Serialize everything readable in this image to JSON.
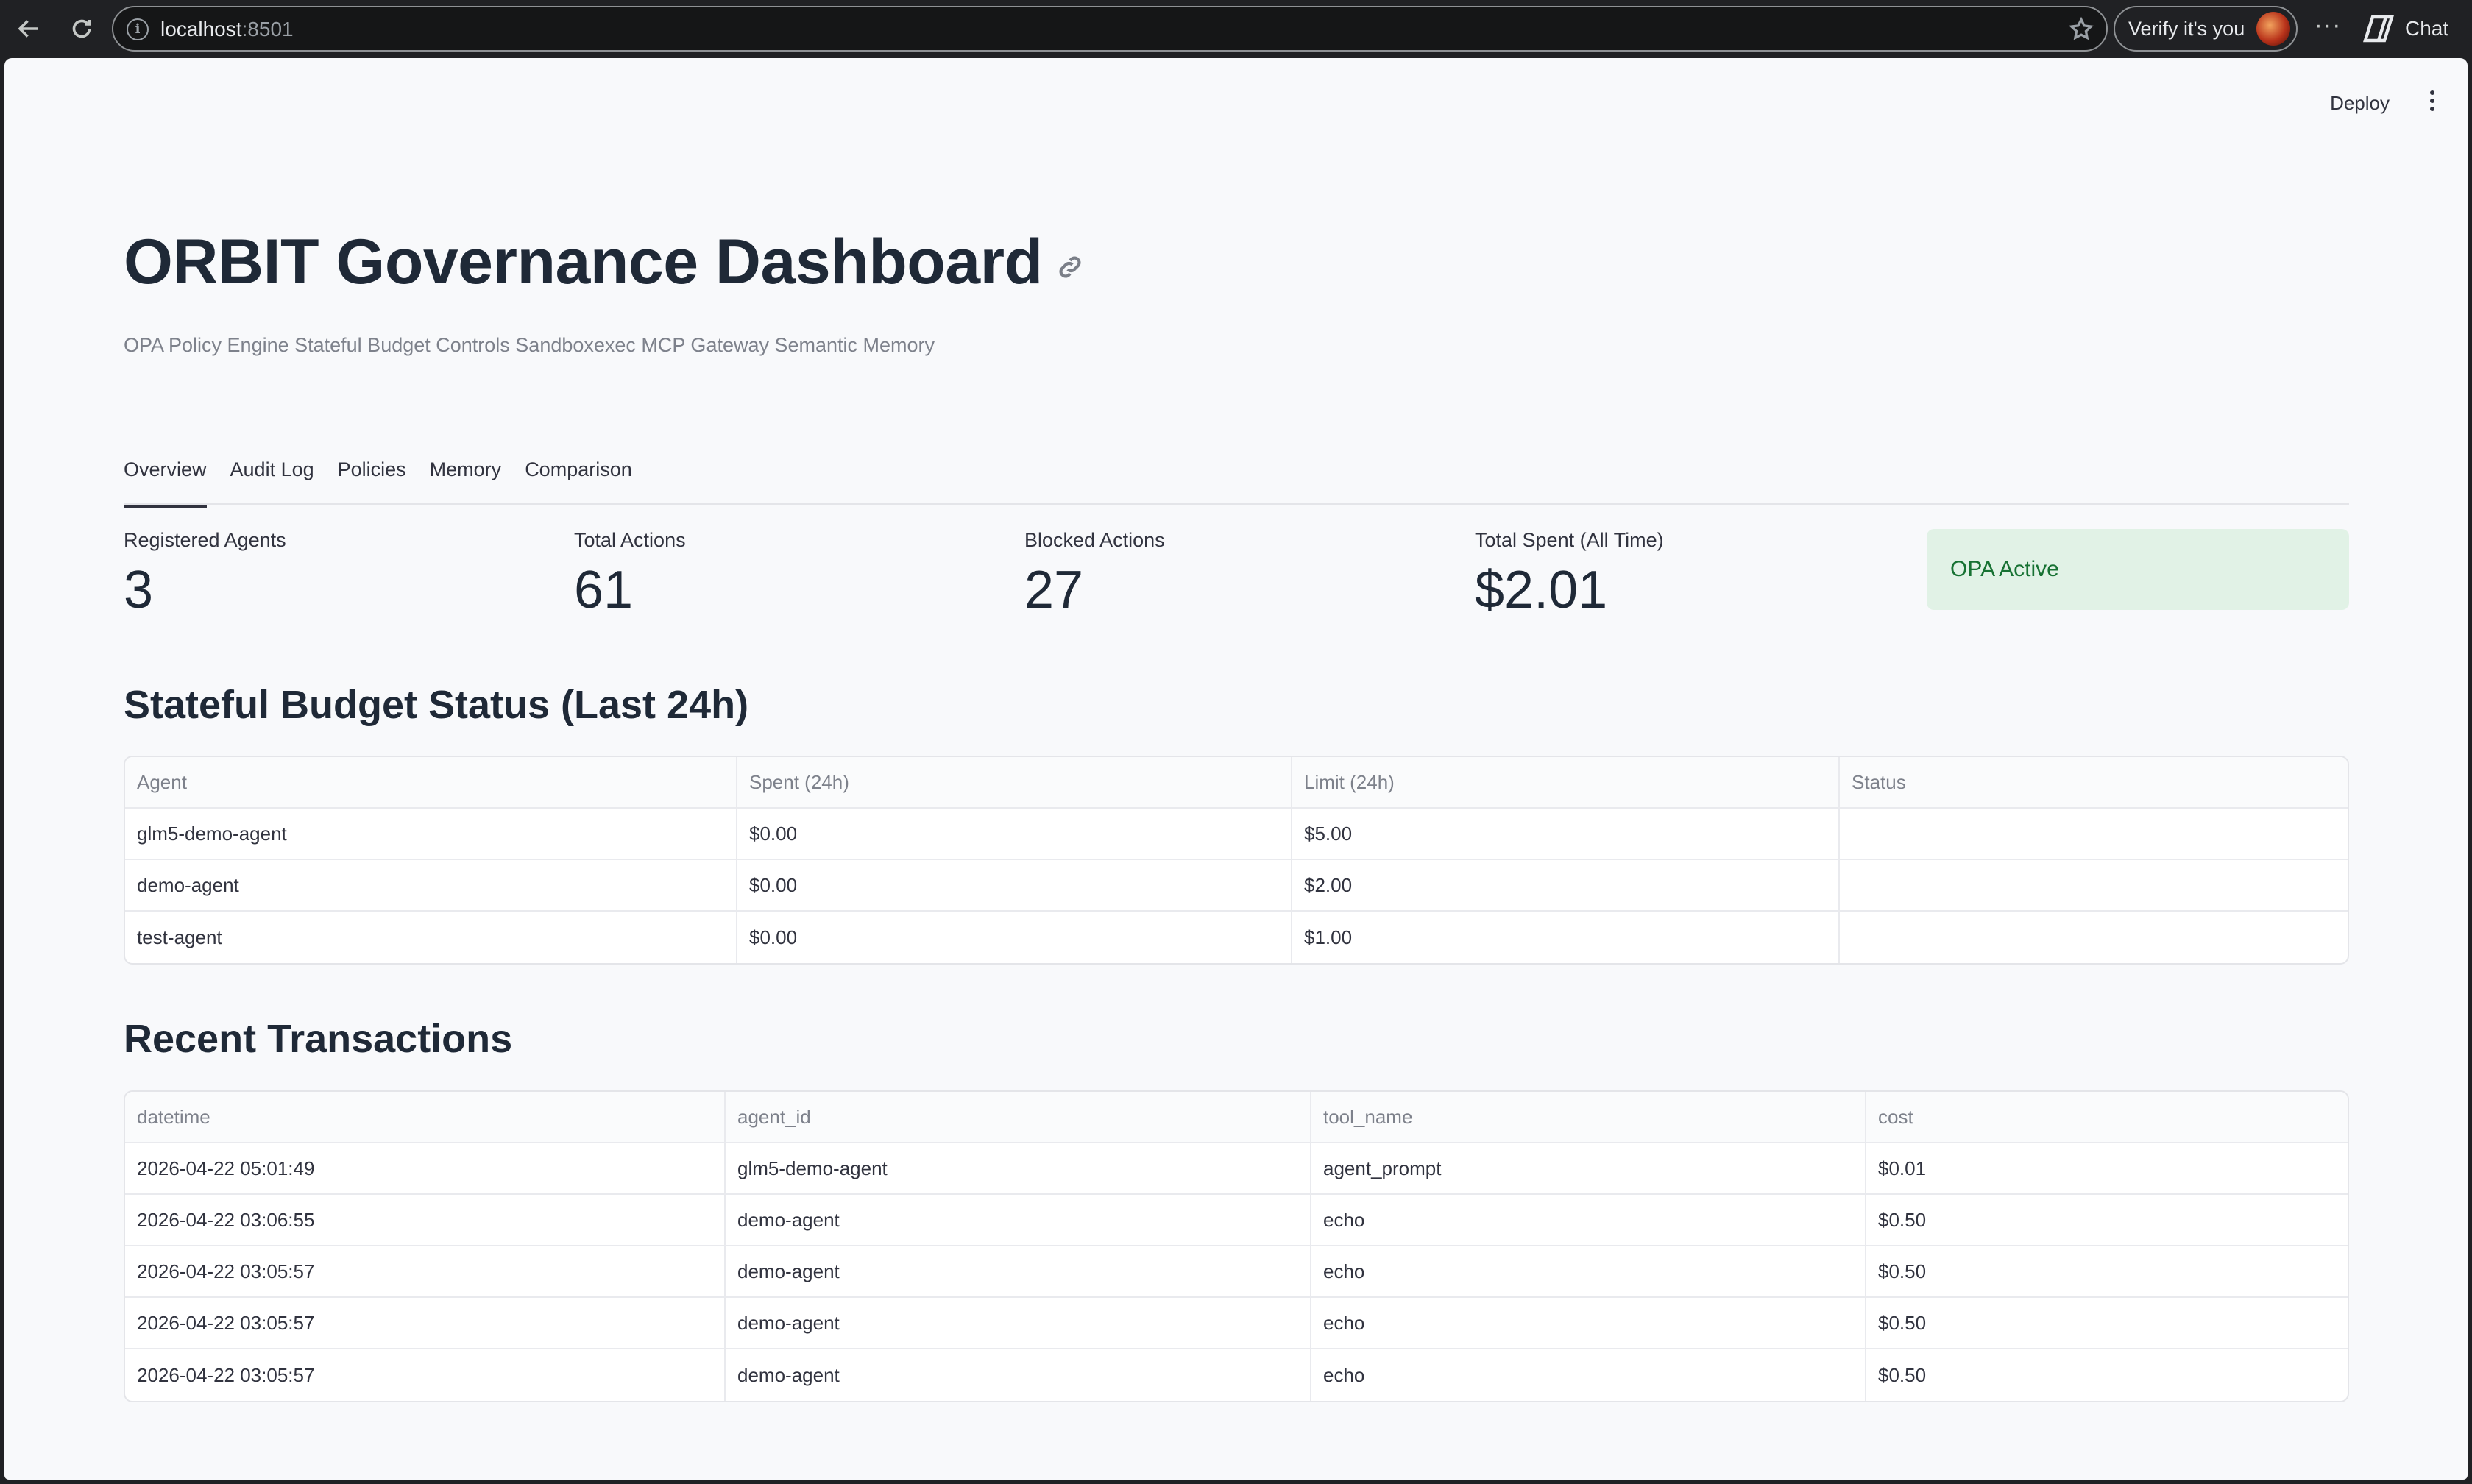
{
  "browser": {
    "url_host": "localhost",
    "url_port": ":8501",
    "verify_label": "Verify it's you",
    "more_label": "···",
    "chat_label": "Chat"
  },
  "app": {
    "deploy_label": "Deploy",
    "title": "ORBIT Governance Dashboard",
    "subtitle": "OPA Policy Engine Stateful Budget Controls Sandboxexec MCP Gateway Semantic Memory"
  },
  "tabs": [
    {
      "label": "Overview",
      "active": true
    },
    {
      "label": "Audit Log",
      "active": false
    },
    {
      "label": "Policies",
      "active": false
    },
    {
      "label": "Memory",
      "active": false
    },
    {
      "label": "Comparison",
      "active": false
    }
  ],
  "metrics": [
    {
      "label": "Registered Agents",
      "value": "3"
    },
    {
      "label": "Total Actions",
      "value": "61"
    },
    {
      "label": "Blocked Actions",
      "value": "27"
    },
    {
      "label": "Total Spent (All Time)",
      "value": "$2.01"
    }
  ],
  "opa_status": {
    "label": "OPA Active",
    "bg_color": "#e1f2e6",
    "text_color": "#177233"
  },
  "budget": {
    "heading": "Stateful Budget Status (Last 24h)",
    "columns": [
      "Agent",
      "Spent (24h)",
      "Limit (24h)",
      "Status"
    ],
    "rows": [
      [
        "glm5-demo-agent",
        "$0.00",
        "$5.00",
        ""
      ],
      [
        "demo-agent",
        "$0.00",
        "$2.00",
        ""
      ],
      [
        "test-agent",
        "$0.00",
        "$1.00",
        ""
      ]
    ]
  },
  "transactions": {
    "heading": "Recent Transactions",
    "columns": [
      "datetime",
      "agent_id",
      "tool_name",
      "cost"
    ],
    "rows": [
      [
        "2026-04-22 05:01:49",
        "glm5-demo-agent",
        "agent_prompt",
        "$0.01"
      ],
      [
        "2026-04-22 03:06:55",
        "demo-agent",
        "echo",
        "$0.50"
      ],
      [
        "2026-04-22 03:05:57",
        "demo-agent",
        "echo",
        "$0.50"
      ],
      [
        "2026-04-22 03:05:57",
        "demo-agent",
        "echo",
        "$0.50"
      ],
      [
        "2026-04-22 03:05:57",
        "demo-agent",
        "echo",
        "$0.50"
      ]
    ]
  }
}
